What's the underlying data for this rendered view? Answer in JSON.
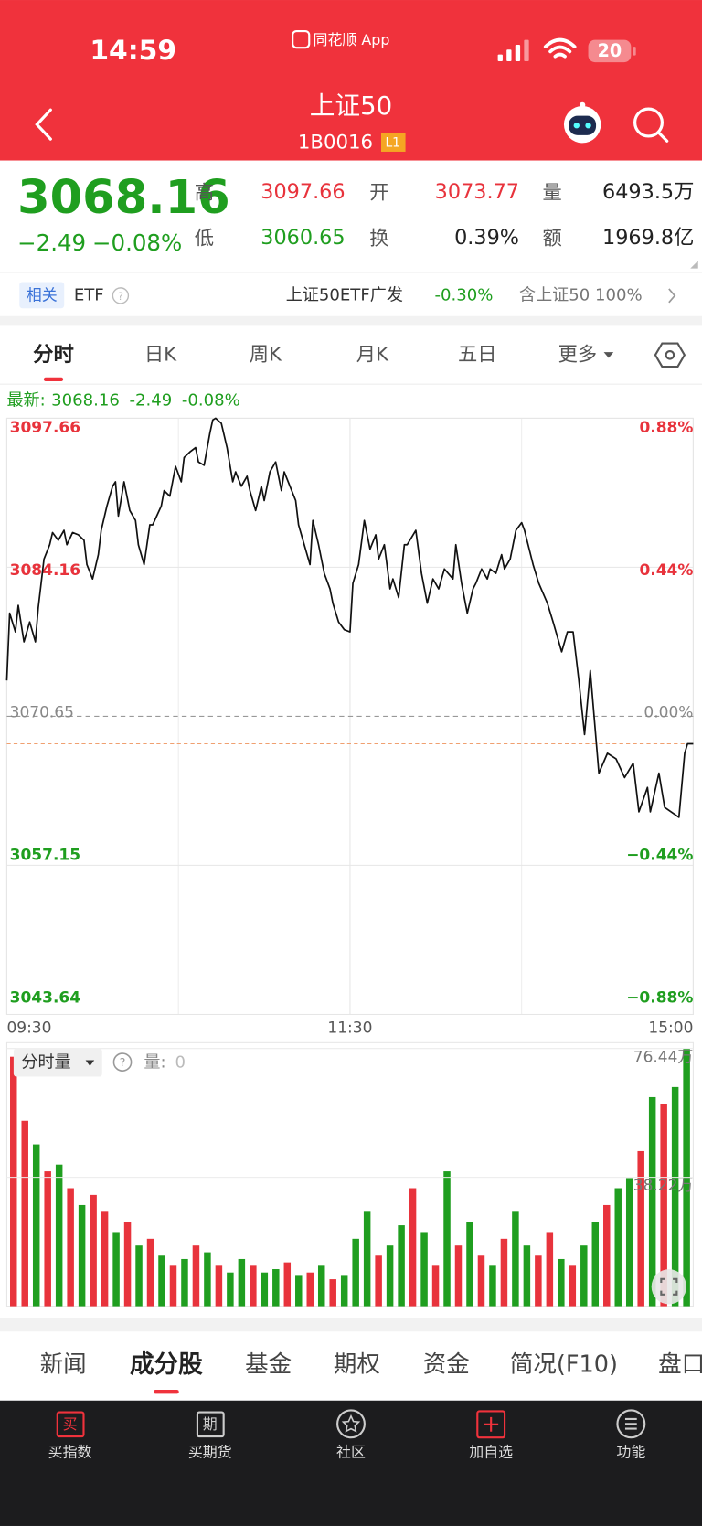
{
  "status_bar": {
    "time": "14:59",
    "app": "同花顺 App",
    "battery": "20"
  },
  "header": {
    "title": "上证50",
    "code": "1B0016",
    "level": "L1"
  },
  "quote": {
    "price": "3068.16",
    "change": "−2.49",
    "change_pct": "−0.08%",
    "stats": [
      {
        "label": "高",
        "value": "3097.66"
      },
      {
        "label": "开",
        "value": "3073.77"
      },
      {
        "label": "量",
        "value": "6493.5万"
      },
      {
        "label": "低",
        "value": "3060.65"
      },
      {
        "label": "换",
        "value": "0.39%"
      },
      {
        "label": "额",
        "value": "1969.8亿"
      }
    ]
  },
  "related": {
    "tag": "相关",
    "etf": "ETF",
    "fund": "上证50ETF广发",
    "fund_change": "-0.30%",
    "holding": "含上证50  100%"
  },
  "chart_tabs": [
    "分时",
    "日K",
    "周K",
    "月K",
    "五日",
    "更多"
  ],
  "latest": {
    "label": "最新:",
    "price": "3068.16",
    "change": "-2.49",
    "change_pct": "-0.08%"
  },
  "chart_data": [
    {
      "type": "line",
      "color": "#111111",
      "grid": true,
      "xlim": [
        0,
        240
      ],
      "xticks": [
        {
          "value": 0,
          "label": "09:30"
        },
        {
          "value": 120,
          "label": "11:30"
        },
        {
          "value": 240,
          "label": "15:00"
        }
      ],
      "ylim": [
        3043.64,
        3097.66
      ],
      "yticks": [
        3097.66,
        3084.16,
        3070.65,
        3057.15,
        3043.64
      ],
      "y2lim": [
        -0.88,
        0.88
      ],
      "y2ticks": [
        {
          "value": 0.88,
          "label": "0.88%"
        },
        {
          "value": 0.44,
          "label": "0.44%"
        },
        {
          "value": 0,
          "label": "0.00%"
        },
        {
          "value": -0.44,
          "label": "−0.44%"
        },
        {
          "value": -0.88,
          "label": "−0.88%"
        }
      ],
      "reference_line": 3068.16,
      "x": [
        0,
        1,
        3,
        4,
        6,
        8,
        10,
        11,
        13,
        15,
        16,
        18,
        20,
        21,
        23,
        25,
        27,
        28,
        30,
        32,
        33,
        35,
        37,
        38,
        39,
        41,
        43,
        45,
        46,
        48,
        50,
        51,
        54,
        55,
        57,
        59,
        61,
        62,
        64,
        66,
        67,
        69,
        71,
        72,
        73,
        75,
        77,
        79,
        80,
        82,
        84,
        85,
        87,
        89,
        90,
        92,
        94,
        96,
        97,
        99,
        101,
        102,
        104,
        106,
        107,
        109,
        111,
        113,
        114,
        116,
        118,
        120,
        121,
        123,
        125,
        127,
        129,
        130,
        132,
        134,
        135,
        137,
        139,
        140,
        143,
        145,
        147,
        149,
        151,
        153,
        156,
        157,
        159,
        161,
        163,
        164,
        166,
        168,
        169,
        171,
        173,
        174,
        176,
        178,
        180,
        181,
        184,
        186,
        189,
        191,
        194,
        196,
        198,
        200,
        202,
        204,
        206,
        207,
        210,
        213,
        216,
        219,
        221,
        224,
        225,
        228,
        230,
        235,
        237,
        238,
        240
      ],
      "values": [
        3073.9,
        3080.0,
        3078.3,
        3080.7,
        3077.4,
        3079.2,
        3077.4,
        3080.5,
        3084.9,
        3086.2,
        3087.3,
        3086.6,
        3087.5,
        3086.2,
        3087.3,
        3087.1,
        3086.6,
        3084.4,
        3083.1,
        3085.3,
        3087.5,
        3089.7,
        3091.5,
        3091.9,
        3088.8,
        3091.9,
        3089.3,
        3088.4,
        3086.2,
        3084.4,
        3088.0,
        3088.0,
        3089.7,
        3091.1,
        3090.6,
        3093.3,
        3091.9,
        3094.1,
        3094.6,
        3095.0,
        3093.7,
        3093.4,
        3096.3,
        3097.5,
        3097.66,
        3097.2,
        3095.0,
        3091.9,
        3092.8,
        3091.5,
        3092.4,
        3091.1,
        3089.3,
        3091.5,
        3090.2,
        3092.8,
        3093.7,
        3091.1,
        3092.8,
        3091.5,
        3090.2,
        3088.0,
        3086.2,
        3084.4,
        3088.4,
        3086.2,
        3083.6,
        3082.2,
        3080.9,
        3079.2,
        3078.5,
        3078.3,
        3082.7,
        3084.4,
        3088.4,
        3085.8,
        3087.1,
        3084.9,
        3086.2,
        3082.2,
        3083.1,
        3081.4,
        3086.2,
        3086.2,
        3087.5,
        3083.6,
        3080.9,
        3083.1,
        3082.2,
        3084.0,
        3083.1,
        3086.2,
        3082.7,
        3080.0,
        3082.2,
        3082.7,
        3084.0,
        3083.1,
        3084.0,
        3083.6,
        3085.3,
        3084.0,
        3084.9,
        3087.5,
        3088.2,
        3087.5,
        3084.4,
        3082.7,
        3080.9,
        3079.2,
        3076.5,
        3078.3,
        3078.3,
        3073.9,
        3069.0,
        3074.8,
        3068.6,
        3065.5,
        3067.3,
        3066.8,
        3065.1,
        3066.4,
        3062.0,
        3064.2,
        3062.0,
        3065.5,
        3062.4,
        3061.5,
        3067.3,
        3068.16,
        3068.16
      ]
    },
    {
      "type": "bar",
      "title": "分时量",
      "readout_label": "量:",
      "readout_value": "0",
      "grid": true,
      "ylim": [
        0,
        76.44
      ],
      "yticks": [
        {
          "value": 38.22,
          "label": "38.22万"
        },
        {
          "value": 76.44,
          "label": "76.44万"
        }
      ],
      "values": [
        74,
        55,
        48,
        40,
        42,
        35,
        30,
        33,
        28,
        22,
        25,
        18,
        20,
        15,
        12,
        14,
        18,
        16,
        12,
        10,
        14,
        12,
        10,
        11,
        13,
        9,
        10,
        12,
        8,
        9,
        20,
        28,
        15,
        18,
        24,
        35,
        22,
        12,
        40,
        18,
        25,
        15,
        12,
        20,
        28,
        18,
        15,
        22,
        14,
        12,
        18,
        25,
        30,
        35,
        38,
        46,
        62,
        60,
        65,
        76.44
      ],
      "bar_colors": [
        "#e8333c",
        "#e8333c",
        "#1f9e1f",
        "#e8333c",
        "#1f9e1f",
        "#e8333c",
        "#1f9e1f",
        "#e8333c",
        "#e8333c",
        "#1f9e1f",
        "#e8333c",
        "#1f9e1f",
        "#e8333c",
        "#1f9e1f",
        "#e8333c",
        "#1f9e1f",
        "#e8333c",
        "#1f9e1f",
        "#e8333c",
        "#1f9e1f",
        "#1f9e1f",
        "#e8333c",
        "#1f9e1f",
        "#1f9e1f",
        "#e8333c",
        "#1f9e1f",
        "#e8333c",
        "#1f9e1f",
        "#e8333c",
        "#1f9e1f",
        "#1f9e1f",
        "#1f9e1f",
        "#e8333c",
        "#1f9e1f",
        "#1f9e1f",
        "#e8333c",
        "#1f9e1f",
        "#e8333c",
        "#1f9e1f",
        "#e8333c",
        "#1f9e1f",
        "#e8333c",
        "#1f9e1f",
        "#e8333c",
        "#1f9e1f",
        "#1f9e1f",
        "#e8333c",
        "#e8333c",
        "#1f9e1f",
        "#e8333c",
        "#1f9e1f",
        "#1f9e1f",
        "#e8333c",
        "#1f9e1f",
        "#1f9e1f",
        "#e8333c",
        "#1f9e1f",
        "#e8333c",
        "#1f9e1f",
        "#1f9e1f"
      ]
    }
  ],
  "section_tabs": [
    "新闻",
    "成分股",
    "基金",
    "期权",
    "资金",
    "简况(F10)",
    "盘口"
  ],
  "nav_icons": [
    "买",
    "期"
  ],
  "nav": [
    "买指数",
    "买期货",
    "社区",
    "加自选",
    "功能"
  ]
}
